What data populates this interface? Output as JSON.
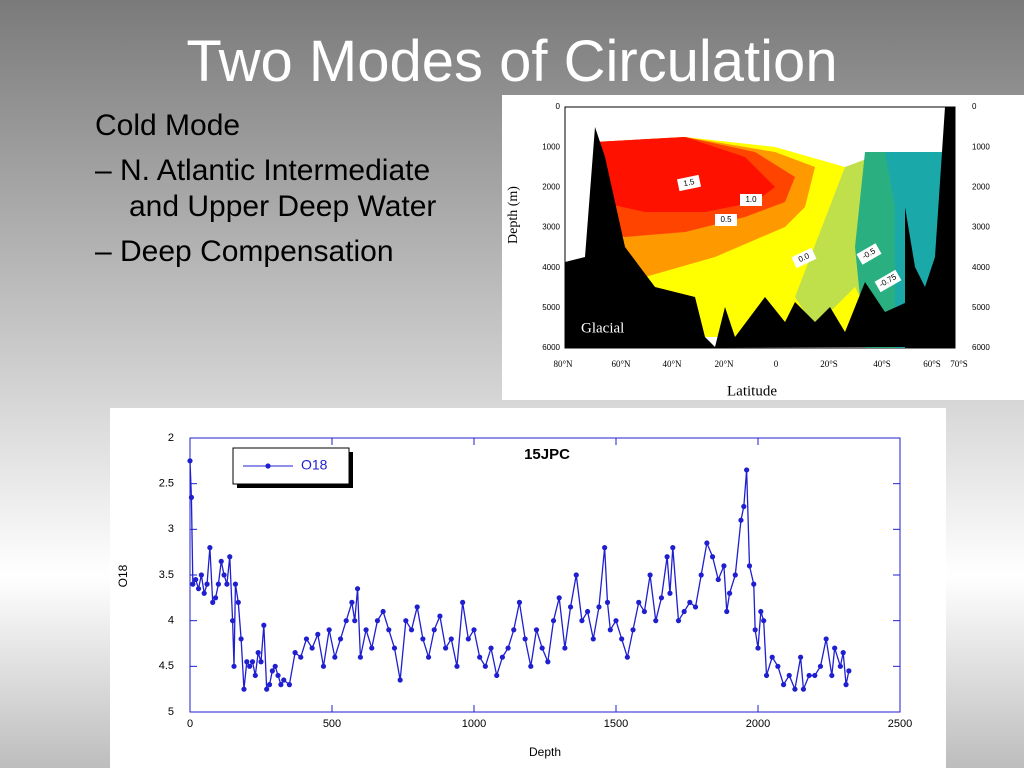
{
  "slide": {
    "title": "Two Modes of Circulation",
    "bullets": [
      "Cold Mode",
      "– N. Atlantic Intermediate and Upper Deep Water",
      "– Deep Compensation"
    ]
  },
  "section_plot": {
    "ylabel": "Depth (m)",
    "xlabel": "Latitude",
    "panel_label": "Glacial",
    "yticks": [
      0,
      1000,
      2000,
      3000,
      4000,
      5000,
      6000
    ],
    "xticks": [
      "80°N",
      "60°N",
      "40°N",
      "20°N",
      "0",
      "20°S",
      "40°S",
      "60°S",
      "70°S"
    ],
    "contour_labels": [
      "1.5",
      "1.0",
      "0.5",
      "0.0",
      "-0.5",
      "-0.75"
    ]
  },
  "chart_data": {
    "type": "line",
    "title": "15JPC",
    "xlabel": "Depth",
    "ylabel": "O18",
    "legend": "upper left",
    "y_inverted": true,
    "xlim": [
      0,
      2500
    ],
    "xticks": [
      0,
      500,
      1000,
      1500,
      2000,
      2500
    ],
    "ylim": [
      2,
      5
    ],
    "yticks": [
      2,
      2.5,
      3,
      3.5,
      4,
      4.5,
      5
    ],
    "x": [
      0,
      5,
      10,
      20,
      30,
      40,
      50,
      60,
      70,
      80,
      90,
      100,
      110,
      120,
      130,
      140,
      150,
      155,
      160,
      170,
      180,
      190,
      200,
      210,
      220,
      230,
      240,
      250,
      260,
      270,
      280,
      290,
      300,
      310,
      320,
      330,
      350,
      370,
      390,
      410,
      430,
      450,
      470,
      490,
      510,
      530,
      550,
      570,
      580,
      590,
      600,
      620,
      640,
      660,
      680,
      700,
      720,
      740,
      760,
      780,
      800,
      820,
      840,
      860,
      880,
      900,
      920,
      940,
      960,
      980,
      1000,
      1020,
      1040,
      1060,
      1080,
      1100,
      1120,
      1140,
      1160,
      1180,
      1200,
      1220,
      1240,
      1260,
      1280,
      1300,
      1320,
      1340,
      1360,
      1380,
      1400,
      1420,
      1440,
      1460,
      1470,
      1480,
      1500,
      1520,
      1540,
      1560,
      1580,
      1600,
      1620,
      1640,
      1660,
      1680,
      1690,
      1700,
      1720,
      1740,
      1760,
      1780,
      1800,
      1820,
      1840,
      1860,
      1880,
      1890,
      1900,
      1920,
      1940,
      1950,
      1960,
      1970,
      1985,
      1990,
      2000,
      2010,
      2020,
      2030,
      2050,
      2070,
      2090,
      2110,
      2130,
      2150,
      2160,
      2180,
      2200,
      2220,
      2240,
      2260,
      2270,
      2290,
      2300,
      2310,
      2320
    ],
    "series": [
      {
        "name": "O18",
        "color": "#1f1fd0",
        "values": [
          2.25,
          2.65,
          3.6,
          3.55,
          3.65,
          3.5,
          3.7,
          3.6,
          3.2,
          3.8,
          3.75,
          3.6,
          3.35,
          3.5,
          3.6,
          3.3,
          4.0,
          4.5,
          3.6,
          3.8,
          4.2,
          4.75,
          4.45,
          4.5,
          4.45,
          4.6,
          4.35,
          4.45,
          4.05,
          4.75,
          4.7,
          4.55,
          4.5,
          4.6,
          4.7,
          4.65,
          4.7,
          4.35,
          4.4,
          4.2,
          4.3,
          4.15,
          4.5,
          4.1,
          4.4,
          4.2,
          4.0,
          3.8,
          4.0,
          3.65,
          4.4,
          4.1,
          4.3,
          4.0,
          3.9,
          4.1,
          4.3,
          4.65,
          4.0,
          4.1,
          3.85,
          4.2,
          4.4,
          4.1,
          3.95,
          4.3,
          4.2,
          4.5,
          3.8,
          4.2,
          4.1,
          4.4,
          4.5,
          4.3,
          4.6,
          4.4,
          4.3,
          4.1,
          3.8,
          4.2,
          4.5,
          4.1,
          4.3,
          4.45,
          4.0,
          3.75,
          4.3,
          3.85,
          3.5,
          4.0,
          3.9,
          4.2,
          3.85,
          3.2,
          3.8,
          4.1,
          4.0,
          4.2,
          4.4,
          4.1,
          3.8,
          3.9,
          3.5,
          4.0,
          3.75,
          3.3,
          3.7,
          3.2,
          4.0,
          3.9,
          3.8,
          3.85,
          3.5,
          3.15,
          3.3,
          3.55,
          3.4,
          3.9,
          3.7,
          3.5,
          2.9,
          2.75,
          2.35,
          3.4,
          3.6,
          4.1,
          4.3,
          3.9,
          4.0,
          4.6,
          4.4,
          4.5,
          4.7,
          4.6,
          4.75,
          4.4,
          4.75,
          4.6,
          4.6,
          4.5,
          4.2,
          4.6,
          4.3,
          4.5,
          4.35,
          4.7,
          4.55
        ]
      }
    ]
  }
}
